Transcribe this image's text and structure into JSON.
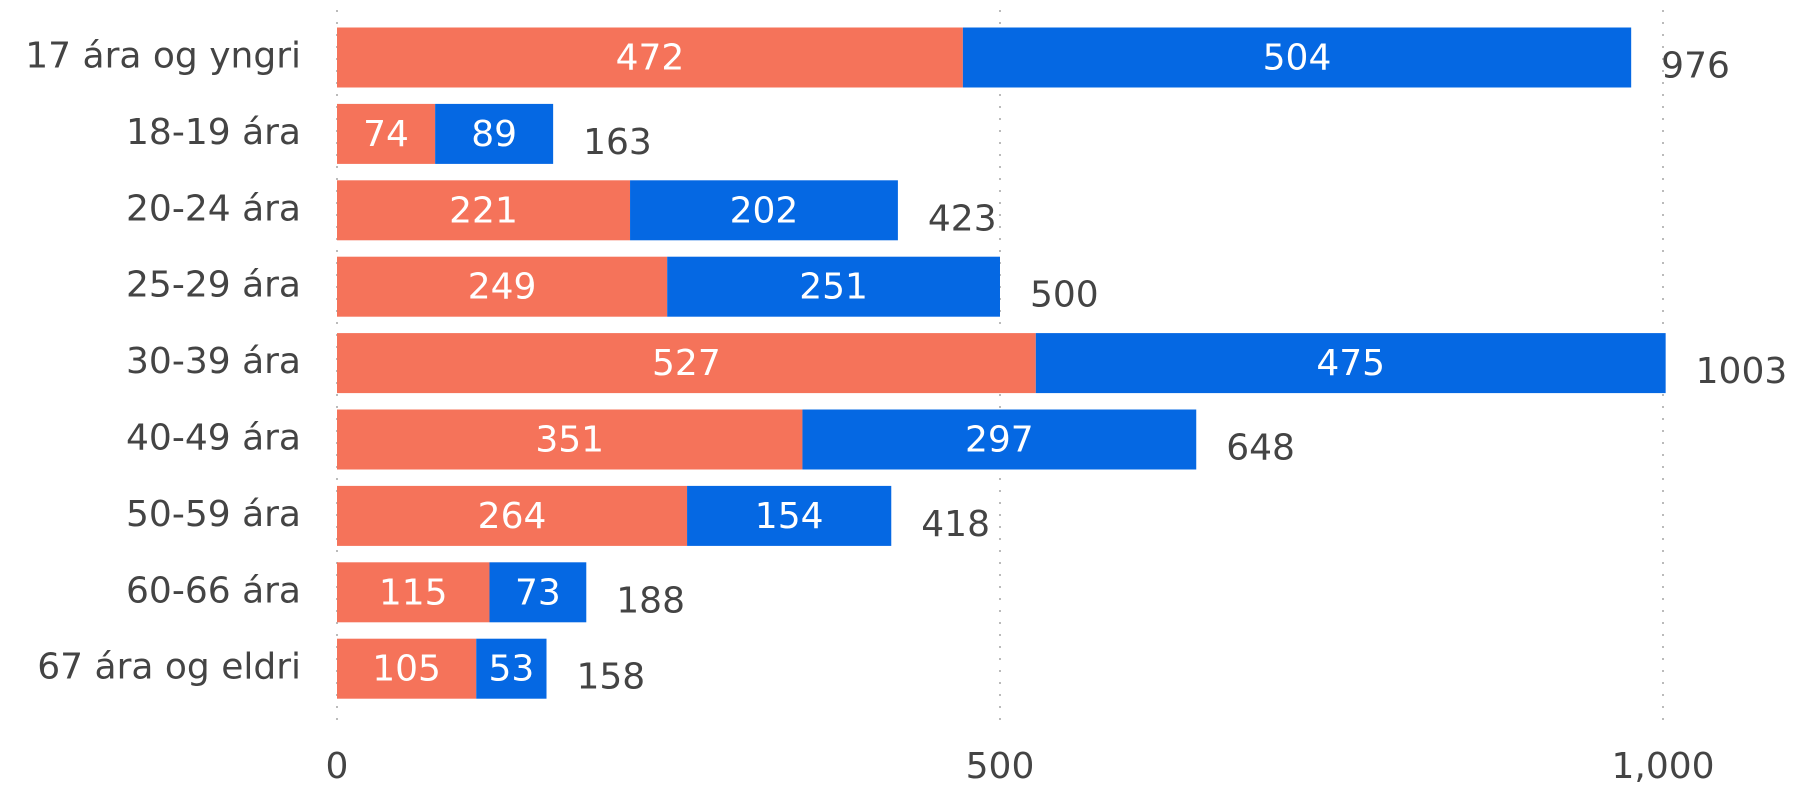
{
  "chart_data": {
    "type": "stacked_bar_horizontal",
    "categories": [
      "17 ára og yngri",
      "18-19 ára",
      "20-24 ára",
      "25-29 ára",
      "30-39 ára",
      "40-49 ára",
      "50-59 ára",
      "60-66 ára",
      "67 ára og eldri"
    ],
    "series": [
      {
        "color": "#f5735a",
        "values": [
          472,
          74,
          221,
          249,
          527,
          351,
          264,
          115,
          105
        ]
      },
      {
        "color": "#0568e3",
        "values": [
          504,
          89,
          202,
          251,
          475,
          297,
          154,
          73,
          53
        ]
      }
    ],
    "totals": [
      976,
      163,
      423,
      500,
      1003,
      648,
      418,
      188,
      158
    ],
    "xlim": [
      0,
      1000
    ],
    "xticks": [
      0,
      500,
      {
        "value": 1000,
        "label": "1,000"
      }
    ],
    "grid": true
  }
}
